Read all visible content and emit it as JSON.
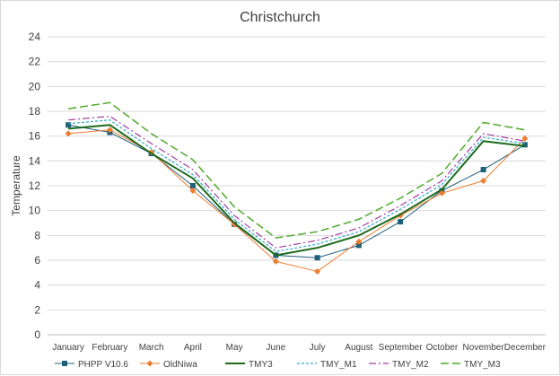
{
  "chart_data": {
    "type": "line",
    "title": "Christchurch",
    "xlabel": "",
    "ylabel": "Temperature",
    "ylim": [
      0,
      24
    ],
    "yticks": [
      0,
      2,
      4,
      6,
      8,
      10,
      12,
      14,
      16,
      18,
      20,
      22,
      24
    ],
    "grid": "horizontal",
    "legend_position": "bottom",
    "categories": [
      "January",
      "February",
      "March",
      "April",
      "May",
      "June",
      "July",
      "August",
      "September",
      "October",
      "November",
      "December"
    ],
    "series": [
      {
        "name": "PHPP V10.6",
        "color": "#1f5f7a",
        "dash": "",
        "width": 1,
        "marker": "square",
        "values": [
          16.9,
          16.3,
          14.6,
          12.0,
          8.9,
          6.4,
          6.2,
          7.2,
          9.1,
          11.6,
          13.3,
          15.3
        ]
      },
      {
        "name": "OldNiwa",
        "color": "#ed7d31",
        "dash": "",
        "width": 1,
        "marker": "diamond",
        "values": [
          16.2,
          16.5,
          14.7,
          11.6,
          8.9,
          5.9,
          5.1,
          7.5,
          9.6,
          11.4,
          12.4,
          15.8
        ]
      },
      {
        "name": "TMY3",
        "color": "#1e6b1e",
        "dash": "",
        "width": 2,
        "marker": "none",
        "values": [
          16.6,
          16.9,
          14.6,
          12.6,
          9.0,
          6.4,
          7.0,
          8.0,
          9.7,
          11.7,
          15.6,
          15.2
        ]
      },
      {
        "name": "TMY_M1",
        "color": "#2ea8c8",
        "dash": "3,2",
        "width": 1.2,
        "marker": "none",
        "values": [
          17.0,
          17.3,
          15.0,
          12.9,
          9.3,
          6.7,
          7.3,
          8.3,
          10.1,
          12.1,
          15.9,
          15.4
        ]
      },
      {
        "name": "TMY_M2",
        "color": "#a43da4",
        "dash": "8,3,2,3",
        "width": 1.2,
        "marker": "none",
        "values": [
          17.3,
          17.6,
          15.4,
          13.3,
          9.6,
          7.0,
          7.6,
          8.6,
          10.4,
          12.4,
          16.2,
          15.6
        ]
      },
      {
        "name": "TMY_M3",
        "color": "#4daa2a",
        "dash": "9,4",
        "width": 1.5,
        "marker": "none",
        "values": [
          18.2,
          18.7,
          16.2,
          14.1,
          10.3,
          7.8,
          8.3,
          9.3,
          11.0,
          13.0,
          17.1,
          16.5
        ]
      }
    ]
  }
}
